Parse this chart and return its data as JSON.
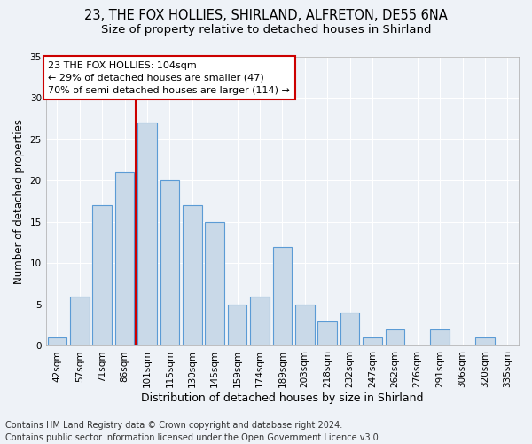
{
  "title1": "23, THE FOX HOLLIES, SHIRLAND, ALFRETON, DE55 6NA",
  "title2": "Size of property relative to detached houses in Shirland",
  "xlabel": "Distribution of detached houses by size in Shirland",
  "ylabel": "Number of detached properties",
  "categories": [
    "42sqm",
    "57sqm",
    "71sqm",
    "86sqm",
    "101sqm",
    "115sqm",
    "130sqm",
    "145sqm",
    "159sqm",
    "174sqm",
    "189sqm",
    "203sqm",
    "218sqm",
    "232sqm",
    "247sqm",
    "262sqm",
    "276sqm",
    "291sqm",
    "306sqm",
    "320sqm",
    "335sqm"
  ],
  "values": [
    1,
    6,
    17,
    21,
    27,
    20,
    17,
    15,
    5,
    6,
    12,
    5,
    3,
    4,
    1,
    2,
    0,
    2,
    0,
    1,
    0
  ],
  "bar_color": "#c9d9e8",
  "bar_edge_color": "#5b9bd5",
  "annotation_text_line1": "23 THE FOX HOLLIES: 104sqm",
  "annotation_text_line2": "← 29% of detached houses are smaller (47)",
  "annotation_text_line3": "70% of semi-detached houses are larger (114) →",
  "annotation_box_facecolor": "#ffffff",
  "annotation_box_edgecolor": "#cc0000",
  "vline_color": "#cc0000",
  "vline_x_index": 4,
  "ylim": [
    0,
    35
  ],
  "yticks": [
    0,
    5,
    10,
    15,
    20,
    25,
    30,
    35
  ],
  "footer1": "Contains HM Land Registry data © Crown copyright and database right 2024.",
  "footer2": "Contains public sector information licensed under the Open Government Licence v3.0.",
  "background_color": "#eef2f7",
  "grid_color": "#ffffff",
  "title1_fontsize": 10.5,
  "title2_fontsize": 9.5,
  "xlabel_fontsize": 9,
  "ylabel_fontsize": 8.5,
  "tick_fontsize": 7.5,
  "annot_fontsize": 8,
  "footer_fontsize": 7
}
